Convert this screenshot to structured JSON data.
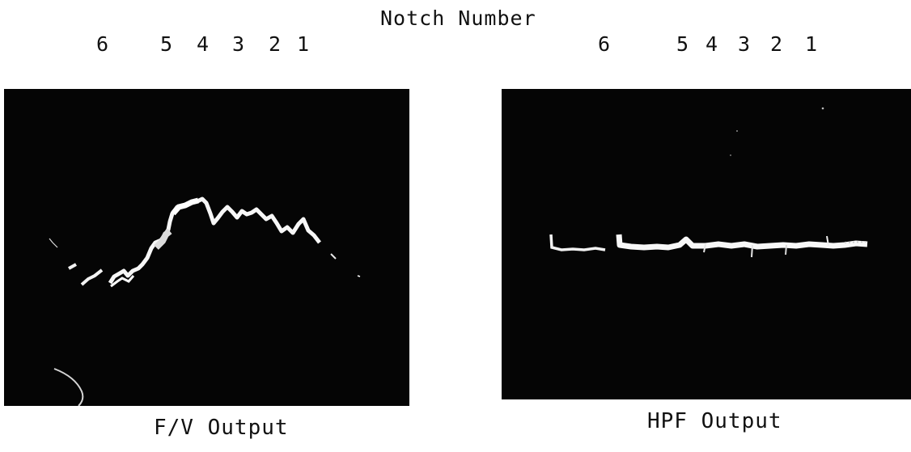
{
  "title": "Notch Number",
  "left_panel": {
    "notch_numbers": [
      "6",
      "5",
      "4",
      "3",
      "2",
      "1"
    ],
    "caption": "F/V Output"
  },
  "right_panel": {
    "notch_numbers": [
      "6",
      "5",
      "4",
      "3",
      "2",
      "1"
    ],
    "caption": "HPF Output"
  },
  "colors": {
    "screen": "#050505",
    "trace": "#f4f4f4",
    "text": "#111111"
  }
}
